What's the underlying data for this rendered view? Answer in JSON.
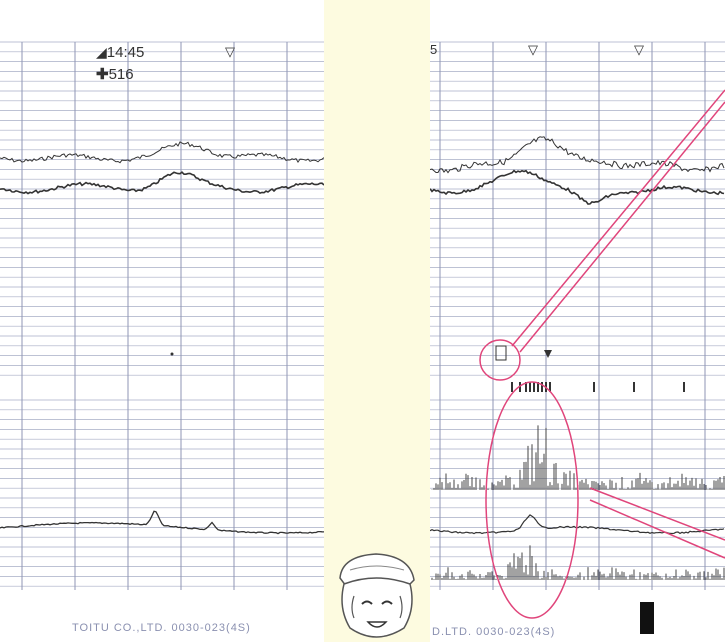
{
  "left_strip": {
    "time_label": "14:45",
    "marker_value": "516",
    "footer": "TOITU CO.,LTD.  0030-023(4S)"
  },
  "right_strip": {
    "edge_label": "5",
    "footer": "D.LTD.  0030-023(4S)"
  },
  "colors": {
    "grid": "#a7adc6",
    "trace": "#333333",
    "highlight": "#e0457b",
    "paper": "#fdfbe0"
  }
}
